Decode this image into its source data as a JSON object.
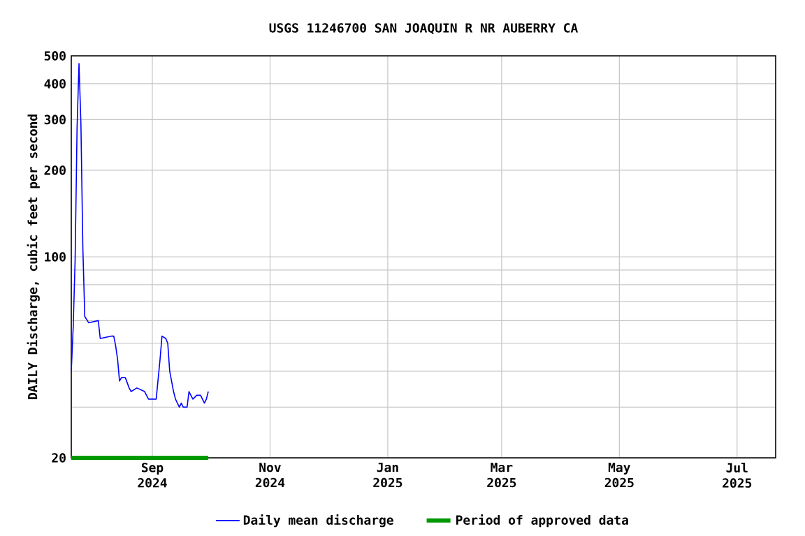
{
  "chart_data": {
    "type": "line",
    "title": "USGS 11246700 SAN JOAQUIN R NR AUBERRY CA",
    "ylabel": "DAILY Discharge, cubic feet per second",
    "log": "y",
    "grid": true,
    "legend": "bottom",
    "marker": "none",
    "xlim": [
      "2024-07-21",
      "2025-07-21"
    ],
    "ylim": [
      20,
      500
    ],
    "xticks": [
      {
        "value": "2024-09-01",
        "label": "Sep 2024"
      },
      {
        "value": "2024-11-01",
        "label": "Nov 2024"
      },
      {
        "value": "2025-01-01",
        "label": "Jan 2025"
      },
      {
        "value": "2025-03-01",
        "label": "Mar 2025"
      },
      {
        "value": "2025-05-01",
        "label": "May 2025"
      },
      {
        "value": "2025-07-01",
        "label": "Jul 2025"
      }
    ],
    "yticks": [
      20,
      {
        "value": 30,
        "label": null
      },
      {
        "value": 40,
        "label": null
      },
      {
        "value": 50,
        "label": null
      },
      {
        "value": 60,
        "label": null
      },
      {
        "value": 70,
        "label": null
      },
      {
        "value": 80,
        "label": null
      },
      {
        "value": 90,
        "label": null
      },
      100,
      200,
      300,
      400,
      500
    ],
    "series": [
      {
        "name": "Daily mean discharge",
        "color": "#0000ff",
        "x": [
          "2024-07-21",
          "2024-07-22",
          "2024-07-23",
          "2024-07-24",
          "2024-07-25",
          "2024-07-26",
          "2024-07-27",
          "2024-07-28",
          "2024-07-30",
          "2024-08-04",
          "2024-08-05",
          "2024-08-11",
          "2024-08-12",
          "2024-08-13",
          "2024-08-14",
          "2024-08-15",
          "2024-08-16",
          "2024-08-18",
          "2024-08-20",
          "2024-08-21",
          "2024-08-24",
          "2024-08-28",
          "2024-08-30",
          "2024-09-03",
          "2024-09-05",
          "2024-09-06",
          "2024-09-08",
          "2024-09-09",
          "2024-09-10",
          "2024-09-12",
          "2024-09-13",
          "2024-09-15",
          "2024-09-16",
          "2024-09-17",
          "2024-09-19",
          "2024-09-20",
          "2024-09-22",
          "2024-09-24",
          "2024-09-26",
          "2024-09-28",
          "2024-09-29",
          "2024-09-30"
        ],
        "values": [
          40,
          57,
          98,
          280,
          470,
          290,
          107,
          62,
          59,
          60,
          52,
          53,
          53,
          49,
          44,
          37,
          38,
          38,
          35,
          34,
          35,
          34,
          32,
          32,
          44,
          53,
          52,
          50,
          40,
          34,
          32,
          30,
          31,
          30,
          30,
          34,
          32,
          33,
          33,
          31,
          32,
          34
        ]
      },
      {
        "name": "Period of approved data",
        "color": "#009900",
        "x": [
          "2024-07-21",
          "2024-09-30"
        ],
        "values": [
          20,
          20
        ]
      }
    ]
  }
}
